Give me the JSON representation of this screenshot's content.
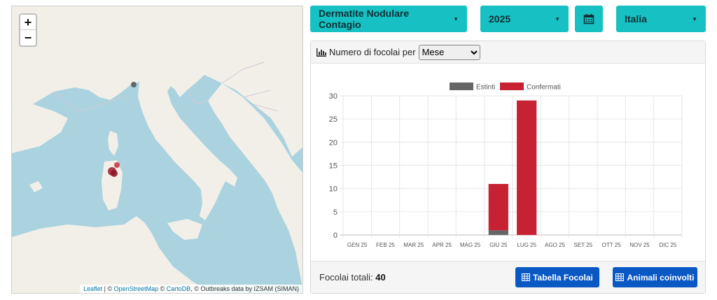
{
  "map": {
    "zoom_in": "+",
    "zoom_out": "−",
    "attribution": {
      "leaflet": "Leaflet",
      "sep1": " | © ",
      "osm": "OpenStreetMap",
      "sep2": " © ",
      "carto": "CartoDB",
      "rest": ", © Outbreaks data by IZSAM (SIMAN)"
    }
  },
  "filters": {
    "disease": "Dermatite Nodulare Contagio",
    "year": "2025",
    "calendar_icon": "calendar-icon",
    "country": "Italia"
  },
  "panel": {
    "header_label": "Numero di focolai per",
    "period_selected": "Mese",
    "total_label": "Focolai totali:",
    "total_value": "40",
    "btn_table": "Tabella Focolai",
    "btn_animals": "Animali coinvolti"
  },
  "colors": {
    "accent": "#17c1c3",
    "primary": "#0a58c4",
    "confirmed": "#c62234",
    "extinct": "#666666"
  },
  "chart_data": {
    "type": "bar",
    "stacked": true,
    "categories": [
      "GEN 25",
      "FEB 25",
      "MAR 25",
      "APR 25",
      "MAG 25",
      "GIU 25",
      "LUG 25",
      "AGO 25",
      "SET 25",
      "OTT 25",
      "NOV 25",
      "DIC 25"
    ],
    "series": [
      {
        "name": "Estinti",
        "values": [
          0,
          0,
          0,
          0,
          0,
          1,
          0,
          0,
          0,
          0,
          0,
          0
        ]
      },
      {
        "name": "Confermati",
        "values": [
          0,
          0,
          0,
          0,
          0,
          10,
          29,
          0,
          0,
          0,
          0,
          0
        ]
      }
    ],
    "yticks": [
      0,
      5,
      10,
      15,
      20,
      25,
      30
    ],
    "ylim": [
      0,
      30
    ],
    "grid": true,
    "legend": "top"
  }
}
